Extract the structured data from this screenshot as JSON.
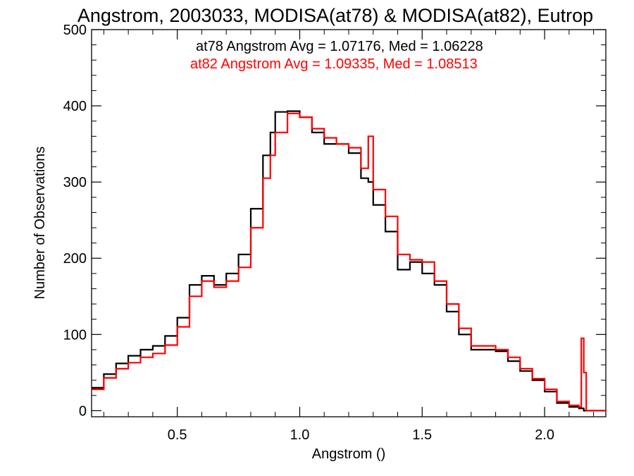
{
  "chart_data": {
    "type": "line",
    "step": true,
    "title": "Angstrom, 2003033, MODISA(at78) & MODISA(at82), Eutrop",
    "xlabel": "Angstrom ()",
    "ylabel": "Number of Observations",
    "xlim": [
      0.15,
      2.25
    ],
    "ylim": [
      -8,
      500
    ],
    "xticks": [
      0.5,
      1.0,
      1.5,
      2.0
    ],
    "xtick_labels": [
      "0.5",
      "1.0",
      "1.5",
      "2.0"
    ],
    "yticks": [
      0,
      100,
      200,
      300,
      400,
      500
    ],
    "ytick_labels": [
      "0",
      "100",
      "200",
      "300",
      "400",
      "500"
    ],
    "grid": false,
    "annotations": [
      {
        "text": "at78 Angstrom Avg = 1.07176, Med = 1.06228",
        "color": "#000000"
      },
      {
        "text": "at82 Angstrom Avg = 1.09335, Med = 1.08513",
        "color": "#ff0000"
      }
    ],
    "series": [
      {
        "color": "#000000",
        "x": [
          0.15,
          0.2,
          0.25,
          0.3,
          0.35,
          0.4,
          0.45,
          0.5,
          0.55,
          0.6,
          0.65,
          0.7,
          0.75,
          0.8,
          0.85,
          0.88,
          0.9,
          0.95,
          1.0,
          1.05,
          1.1,
          1.15,
          1.2,
          1.25,
          1.28,
          1.3,
          1.35,
          1.4,
          1.45,
          1.5,
          1.55,
          1.6,
          1.65,
          1.7,
          1.75,
          1.8,
          1.85,
          1.9,
          1.95,
          2.0,
          2.05,
          2.1,
          2.14,
          2.16,
          2.25
        ],
        "y": [
          30,
          48,
          62,
          72,
          80,
          85,
          98,
          122,
          165,
          177,
          165,
          180,
          205,
          265,
          335,
          365,
          392,
          393,
          385,
          365,
          350,
          350,
          338,
          305,
          300,
          270,
          235,
          185,
          195,
          180,
          165,
          130,
          100,
          80,
          80,
          78,
          65,
          52,
          40,
          25,
          10,
          5,
          3,
          0,
          0
        ]
      },
      {
        "color": "#ff0000",
        "x": [
          0.15,
          0.2,
          0.25,
          0.3,
          0.35,
          0.4,
          0.45,
          0.5,
          0.55,
          0.6,
          0.65,
          0.7,
          0.75,
          0.8,
          0.85,
          0.88,
          0.9,
          0.95,
          1.0,
          1.05,
          1.1,
          1.15,
          1.2,
          1.25,
          1.28,
          1.3,
          1.35,
          1.4,
          1.45,
          1.5,
          1.55,
          1.6,
          1.65,
          1.7,
          1.75,
          1.8,
          1.85,
          1.9,
          1.95,
          2.0,
          2.05,
          2.1,
          2.14,
          2.15,
          2.16,
          2.17,
          2.25
        ],
        "y": [
          28,
          43,
          55,
          63,
          70,
          75,
          86,
          110,
          150,
          170,
          162,
          170,
          188,
          240,
          305,
          335,
          365,
          390,
          385,
          370,
          358,
          350,
          345,
          318,
          360,
          290,
          255,
          205,
          198,
          195,
          170,
          140,
          108,
          85,
          85,
          80,
          70,
          55,
          42,
          28,
          12,
          7,
          5,
          95,
          50,
          0,
          0
        ]
      }
    ]
  }
}
